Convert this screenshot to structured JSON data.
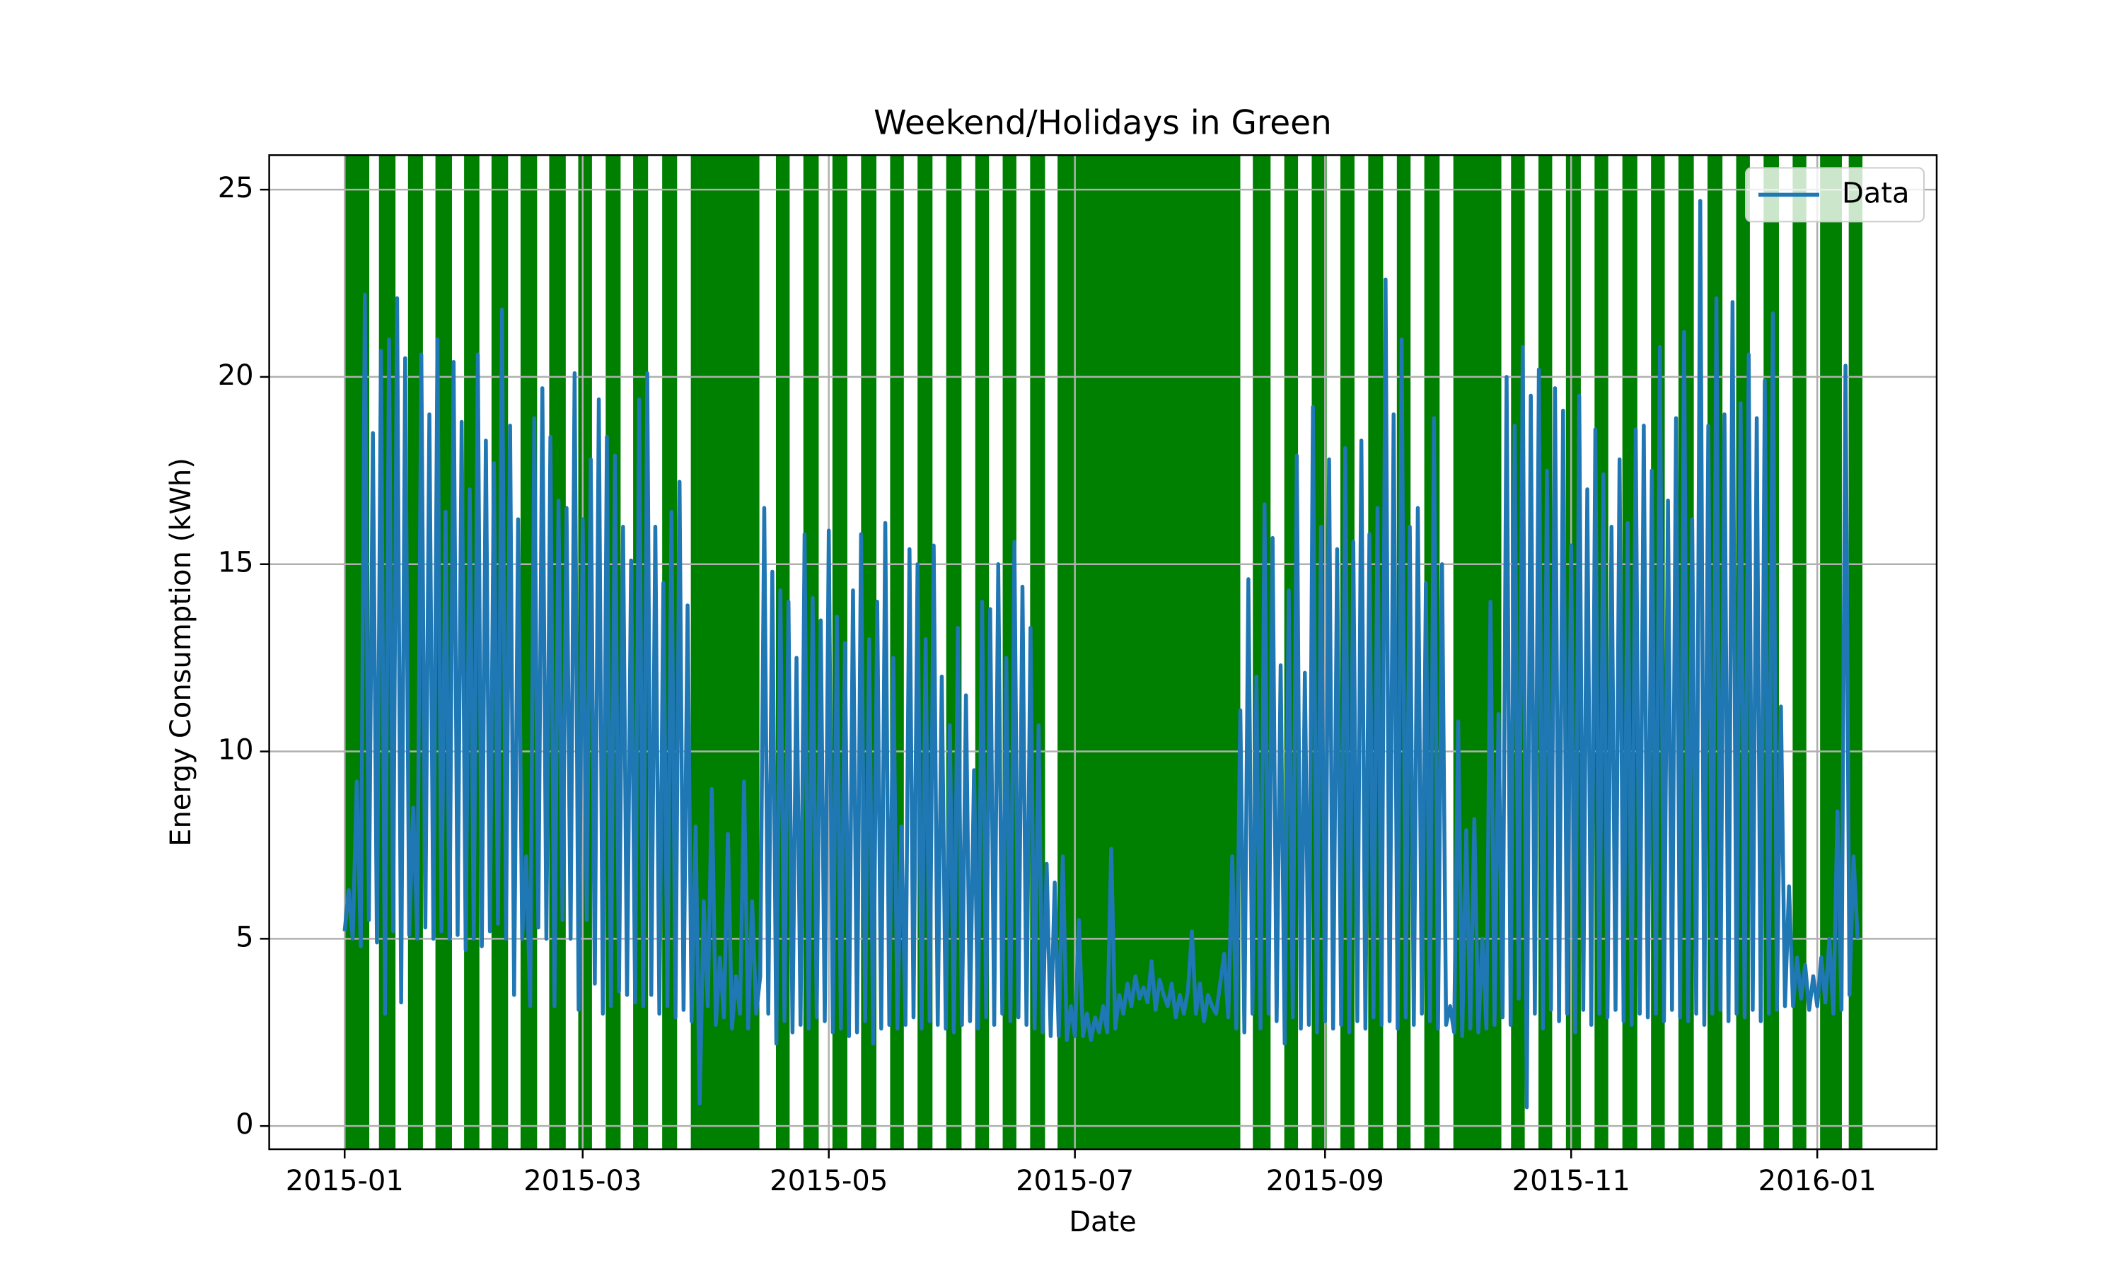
{
  "chart_data": {
    "type": "line",
    "title": "Weekend/Holidays in Green",
    "xlabel": "Date",
    "ylabel": "Energy Consumption (kWh)",
    "x": [
      0,
      1,
      2,
      3,
      4,
      5,
      6,
      7,
      8,
      9,
      10,
      11,
      12,
      13,
      14,
      15,
      16,
      17,
      18,
      19,
      20,
      21,
      22,
      23,
      24,
      25,
      26,
      27,
      28,
      29,
      30,
      31,
      32,
      33,
      34,
      35,
      36,
      37,
      38,
      39,
      40,
      41,
      42,
      43,
      44,
      45,
      46,
      47,
      48,
      49,
      50,
      51,
      52,
      53,
      54,
      55,
      56,
      57,
      58,
      59,
      60,
      61,
      62,
      63,
      64,
      65,
      66,
      67,
      68,
      69,
      70,
      71,
      72,
      73,
      74,
      75,
      76,
      77,
      78,
      79,
      80,
      81,
      82,
      83,
      84,
      85,
      86,
      87,
      88,
      89,
      90,
      91,
      92,
      93,
      94,
      95,
      96,
      97,
      98,
      99,
      100,
      101,
      102,
      103,
      104,
      105,
      106,
      107,
      108,
      109,
      110,
      111,
      112,
      113,
      114,
      115,
      116,
      117,
      118,
      119,
      120,
      121,
      122,
      123,
      124,
      125,
      126,
      127,
      128,
      129,
      130,
      131,
      132,
      133,
      134,
      135,
      136,
      137,
      138,
      139,
      140,
      141,
      142,
      143,
      144,
      145,
      146,
      147,
      148,
      149,
      150,
      151,
      152,
      153,
      154,
      155,
      156,
      157,
      158,
      159,
      160,
      161,
      162,
      163,
      164,
      165,
      166,
      167,
      168,
      169,
      170,
      171,
      172,
      173,
      174,
      175,
      176,
      177,
      178,
      179,
      180,
      181,
      182,
      183,
      184,
      185,
      186,
      187,
      188,
      189,
      190,
      191,
      192,
      193,
      194,
      195,
      196,
      197,
      198,
      199,
      200,
      201,
      202,
      203,
      204,
      205,
      206,
      207,
      208,
      209,
      210,
      211,
      212,
      213,
      214,
      215,
      216,
      217,
      218,
      219,
      220,
      221,
      222,
      223,
      224,
      225,
      226,
      227,
      228,
      229,
      230,
      231,
      232,
      233,
      234,
      235,
      236,
      237,
      238,
      239,
      240,
      241,
      242,
      243,
      244,
      245,
      246,
      247,
      248,
      249,
      250,
      251,
      252,
      253,
      254,
      255,
      256,
      257,
      258,
      259,
      260,
      261,
      262,
      263,
      264,
      265,
      266,
      267,
      268,
      269,
      270,
      271,
      272,
      273,
      274,
      275,
      276,
      277,
      278,
      279,
      280,
      281,
      282,
      283,
      284,
      285,
      286,
      287,
      288,
      289,
      290,
      291,
      292,
      293,
      294,
      295,
      296,
      297,
      298,
      299,
      300,
      301,
      302,
      303,
      304,
      305,
      306,
      307,
      308,
      309,
      310,
      311,
      312,
      313,
      314,
      315,
      316,
      317,
      318,
      319,
      320,
      321,
      322,
      323,
      324,
      325,
      326,
      327,
      328,
      329,
      330,
      331,
      332,
      333,
      334,
      335,
      336,
      337,
      338,
      339,
      340,
      341,
      342,
      343,
      344,
      345,
      346,
      347,
      348,
      349,
      350,
      351,
      352,
      353,
      354,
      355,
      356,
      357,
      358,
      359,
      360,
      361,
      362,
      363,
      364,
      365,
      366,
      367,
      368,
      369,
      370,
      371,
      372,
      373,
      374,
      375
    ],
    "series": [
      {
        "name": "Data",
        "color": "#1f77b4",
        "values": [
          5.2,
          6.3,
          5.0,
          9.2,
          4.8,
          22.2,
          5.5,
          18.5,
          4.9,
          20.7,
          3.0,
          21.0,
          5.2,
          22.1,
          3.3,
          20.5,
          5.1,
          8.5,
          5.0,
          20.6,
          5.3,
          19.0,
          5.0,
          21.0,
          5.2,
          16.4,
          5.0,
          20.4,
          5.1,
          18.8,
          4.7,
          17.0,
          5.0,
          20.6,
          4.8,
          18.3,
          5.2,
          17.7,
          5.4,
          21.8,
          5.0,
          18.7,
          3.5,
          16.2,
          5.0,
          7.2,
          3.2,
          18.9,
          5.3,
          19.7,
          5.0,
          18.4,
          3.2,
          16.7,
          5.5,
          16.5,
          5.0,
          20.1,
          3.1,
          16.2,
          5.5,
          17.8,
          3.8,
          19.4,
          3.0,
          18.4,
          3.2,
          17.9,
          3.6,
          16.0,
          3.5,
          15.1,
          3.3,
          19.4,
          3.2,
          20.1,
          3.5,
          16.0,
          3.0,
          14.5,
          3.2,
          16.4,
          2.9,
          17.2,
          3.1,
          13.9,
          2.8,
          8.0,
          0.6,
          6.0,
          3.2,
          9.0,
          2.7,
          4.5,
          2.9,
          7.8,
          2.6,
          4.0,
          3.0,
          9.2,
          2.6,
          6.0,
          3.0,
          4.0,
          16.5,
          3.0,
          14.8,
          2.2,
          14.3,
          2.8,
          14.0,
          2.5,
          12.5,
          2.7,
          15.8,
          2.6,
          14.1,
          2.9,
          13.5,
          2.8,
          15.9,
          2.5,
          13.6,
          2.6,
          12.9,
          2.4,
          14.3,
          2.5,
          15.8,
          2.8,
          13.0,
          2.2,
          14.0,
          2.6,
          16.1,
          2.7,
          12.5,
          2.6,
          8.0,
          2.7,
          15.4,
          2.9,
          15.0,
          2.6,
          13.0,
          2.8,
          15.5,
          2.7,
          12.0,
          2.6,
          10.7,
          2.5,
          13.3,
          2.7,
          11.5,
          2.8,
          9.5,
          2.6,
          14.0,
          2.9,
          13.8,
          2.7,
          15.0,
          3.0,
          12.5,
          2.8,
          15.6,
          2.9,
          14.4,
          2.7,
          13.3,
          2.6,
          10.7,
          2.5,
          7.0,
          2.4,
          6.5,
          2.4,
          7.2,
          2.3,
          3.2,
          2.4,
          5.5,
          2.4,
          3.0,
          2.3,
          2.9,
          2.5,
          3.2,
          2.5,
          7.4,
          2.6,
          3.5,
          3.0,
          3.8,
          3.2,
          4.0,
          3.4,
          3.7,
          3.3,
          4.4,
          3.1,
          3.9,
          3.5,
          3.2,
          3.8,
          2.9,
          3.5,
          3.0,
          3.6,
          5.2,
          3.0,
          3.8,
          2.8,
          3.5,
          3.2,
          3.0,
          3.8,
          4.6,
          2.9,
          7.2,
          2.6,
          11.1,
          2.5,
          14.6,
          3.0,
          12.0,
          2.6,
          16.6,
          3.0,
          15.7,
          2.8,
          12.3,
          2.2,
          14.3,
          2.9,
          17.9,
          2.6,
          12.1,
          2.7,
          19.2,
          2.5,
          16.0,
          2.8,
          17.8,
          2.6,
          15.4,
          2.7,
          18.1,
          2.5,
          15.6,
          2.8,
          18.3,
          2.6,
          15.8,
          2.9,
          16.5,
          2.7,
          22.6,
          2.8,
          19.0,
          2.6,
          21.0,
          2.9,
          16.0,
          2.7,
          16.5,
          3.0,
          14.5,
          2.8,
          18.9,
          2.6,
          15.0,
          2.7,
          3.2,
          2.5,
          10.8,
          2.4,
          7.9,
          2.6,
          8.2,
          2.5,
          5.0,
          2.6,
          14.0,
          2.7,
          11.0,
          2.9,
          20.0,
          2.7,
          18.7,
          3.4,
          20.8,
          0.5,
          19.5,
          3.0,
          20.2,
          2.6,
          17.5,
          3.1,
          19.7,
          2.8,
          19.1,
          3.0,
          15.5,
          2.5,
          19.5,
          3.1,
          17.0,
          2.7,
          18.6,
          3.0,
          17.4,
          2.9,
          16.0,
          3.1,
          17.8,
          2.8,
          16.1,
          2.7,
          18.6,
          3.0,
          18.7,
          2.9,
          17.5,
          3.0,
          20.8,
          2.8,
          16.7,
          3.1,
          18.9,
          2.9,
          21.2,
          2.8,
          16.2,
          3.0,
          24.7,
          2.7,
          18.7,
          3.0,
          22.1,
          3.1,
          19.0,
          2.8,
          22.0,
          3.0,
          19.3,
          2.9,
          20.6,
          3.1,
          18.9,
          2.8,
          19.9,
          3.0,
          21.7,
          3.1,
          11.2,
          3.2,
          6.4,
          3.2,
          4.5,
          3.4,
          4.3,
          3.1,
          4.0,
          3.2,
          4.5,
          3.3,
          5.0,
          3.0,
          8.4,
          3.1,
          20.3,
          3.5,
          7.2,
          5.0
        ]
      }
    ],
    "spans": [
      [
        0,
        6.1
      ],
      [
        8.5,
        12.6
      ],
      [
        15.7,
        19.4
      ],
      [
        22.5,
        26.6
      ],
      [
        29.6,
        33.4
      ],
      [
        36.4,
        40.5
      ],
      [
        43.6,
        47.7
      ],
      [
        50.7,
        54.8
      ],
      [
        57.9,
        61.3
      ],
      [
        64.7,
        68.4
      ],
      [
        71.5,
        75.2
      ],
      [
        78.7,
        82.4
      ],
      [
        85.8,
        102.8
      ],
      [
        106.9,
        110.3
      ],
      [
        113.7,
        117.5
      ],
      [
        120.9,
        124.6
      ],
      [
        128.0,
        131.8
      ],
      [
        135.2,
        138.6
      ],
      [
        142.0,
        145.7
      ],
      [
        149.1,
        152.9
      ],
      [
        156.3,
        159.7
      ],
      [
        163.1,
        166.5
      ],
      [
        169.9,
        173.6
      ],
      [
        176.7,
        222.0
      ],
      [
        225.1,
        229.5
      ],
      [
        232.9,
        236.3
      ],
      [
        239.7,
        243.4
      ],
      [
        246.8,
        250.3
      ],
      [
        253.7,
        257.4
      ],
      [
        260.8,
        264.2
      ],
      [
        267.6,
        271.4
      ],
      [
        274.8,
        286.7
      ],
      [
        289.1,
        292.5
      ],
      [
        295.9,
        299.3
      ],
      [
        302.7,
        306.4
      ],
      [
        309.8,
        313.2
      ],
      [
        316.7,
        320.4
      ],
      [
        323.8,
        327.2
      ],
      [
        330.6,
        334.4
      ],
      [
        337.8,
        341.5
      ],
      [
        344.9,
        348.3
      ],
      [
        351.7,
        355.5
      ],
      [
        358.9,
        362.3
      ],
      [
        365.7,
        371.1
      ],
      [
        372.8,
        376.2
      ]
    ],
    "span_color": "#008000",
    "xlim": [
      -18.7,
      394.6
    ],
    "ylim": [
      -0.62,
      25.92
    ],
    "xticks": [
      {
        "value": 0,
        "label": "2015-01"
      },
      {
        "value": 59,
        "label": "2015-03"
      },
      {
        "value": 120,
        "label": "2015-05"
      },
      {
        "value": 181,
        "label": "2015-07"
      },
      {
        "value": 243,
        "label": "2015-09"
      },
      {
        "value": 304,
        "label": "2015-11"
      },
      {
        "value": 365,
        "label": "2016-01"
      }
    ],
    "yticks": [
      0,
      5,
      10,
      15,
      20,
      25
    ],
    "grid": true,
    "legend": "upper right"
  }
}
